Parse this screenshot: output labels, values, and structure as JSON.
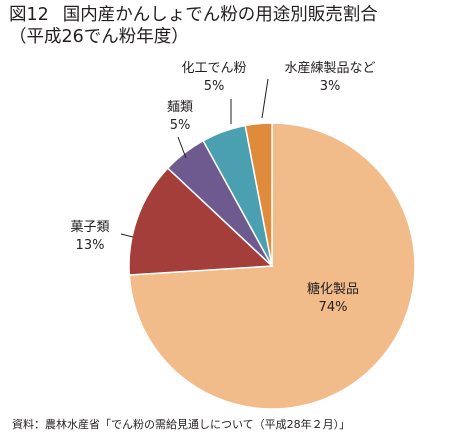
{
  "header": {
    "figure_number": "図12",
    "title": "国内産かんしょでん粉の用途別販売割合",
    "subtitle": "（平成26でん粉年度）"
  },
  "source": "資料：農林水産省「でん粉の需給見通しについて（平成28年２月）」",
  "colors": {
    "sugar_products": "#f2bb8a",
    "confectionery": "#a33e3b",
    "noodles": "#6f5a8f",
    "chemical_starch": "#4aa0b0",
    "fish_paste": "#e08a3c",
    "slice_border": "#ffffff",
    "leader_line": "#231f20"
  },
  "chart_data": {
    "type": "pie",
    "title": "国内産かんしょでん粉の用途別販売割合",
    "start_angle_deg": 0,
    "direction": "clockwise",
    "slices": [
      {
        "key": "sugar_products",
        "label": "糖化製品",
        "value": 74,
        "value_label": "74%",
        "color": "#f2bb8a"
      },
      {
        "key": "confectionery",
        "label": "菓子類",
        "value": 13,
        "value_label": "13%",
        "color": "#a33e3b"
      },
      {
        "key": "noodles",
        "label": "麺類",
        "value": 5,
        "value_label": "5%",
        "color": "#6f5a8f"
      },
      {
        "key": "chemical_starch",
        "label": "化工でん粉",
        "value": 5,
        "value_label": "5%",
        "color": "#4aa0b0"
      },
      {
        "key": "fish_paste",
        "label": "水産練製品など",
        "value": 3,
        "value_label": "3%",
        "color": "#e08a3c"
      }
    ]
  }
}
